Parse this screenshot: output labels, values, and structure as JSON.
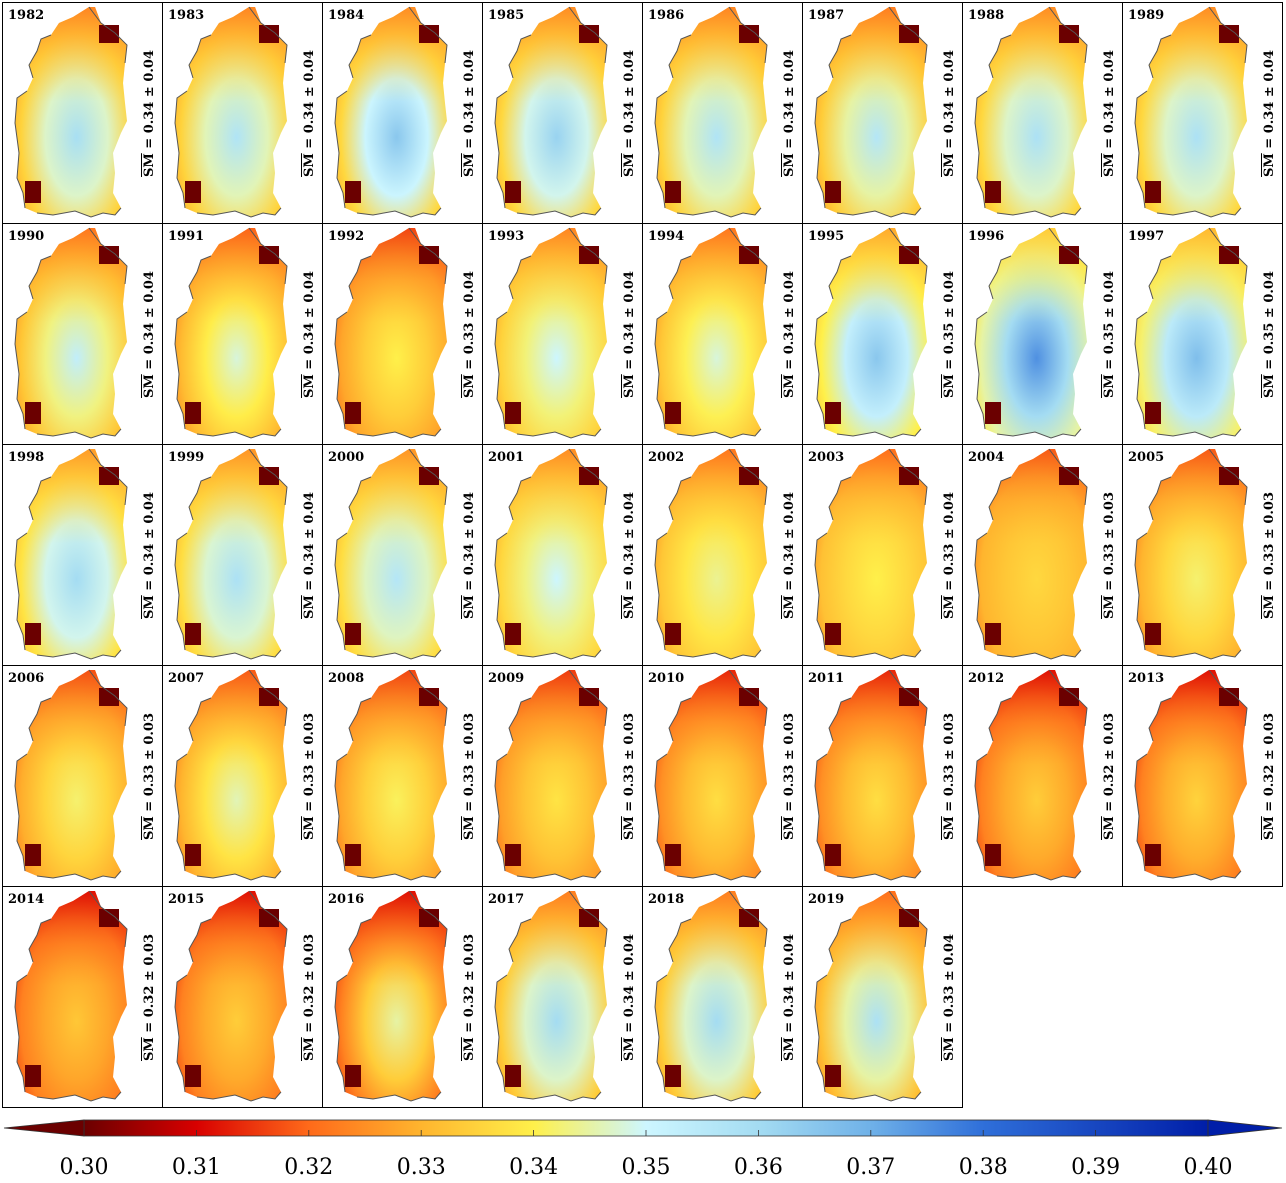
{
  "colors": {
    "stops": [
      "#6b0000",
      "#d80000",
      "#ff6a1a",
      "#ffb52e",
      "#fff04a",
      "#cdf6ff",
      "#a4dcf2",
      "#6fb1e8",
      "#2f6fd9",
      "#001ea8"
    ],
    "outline": "#555555"
  },
  "panels": [
    {
      "year": "1982",
      "label": "SM",
      "value": "= 0.34 ± 0.04",
      "mean": 0.34,
      "center": 0.359,
      "outer": 0.335
    },
    {
      "year": "1983",
      "label": "SM",
      "value": "= 0.34 ± 0.04",
      "mean": 0.34,
      "center": 0.357,
      "outer": 0.335
    },
    {
      "year": "1984",
      "label": "SM",
      "value": "= 0.34 ± 0.04",
      "mean": 0.34,
      "center": 0.365,
      "outer": 0.336
    },
    {
      "year": "1985",
      "label": "SM",
      "value": "= 0.34 ± 0.04",
      "mean": 0.34,
      "center": 0.362,
      "outer": 0.336
    },
    {
      "year": "1986",
      "label": "SM",
      "value": "= 0.34 ± 0.04",
      "mean": 0.34,
      "center": 0.357,
      "outer": 0.335
    },
    {
      "year": "1987",
      "label": "SM",
      "value": "= 0.34 ± 0.04",
      "mean": 0.34,
      "center": 0.356,
      "outer": 0.334
    },
    {
      "year": "1988",
      "label": "SM",
      "value": "= 0.34 ± 0.04",
      "mean": 0.34,
      "center": 0.358,
      "outer": 0.336
    },
    {
      "year": "1989",
      "label": "SM",
      "value": "= 0.34 ± 0.04",
      "mean": 0.34,
      "center": 0.358,
      "outer": 0.336
    },
    {
      "year": "1990",
      "label": "SM",
      "value": "= 0.34 ± 0.04",
      "mean": 0.34,
      "center": 0.353,
      "outer": 0.333
    },
    {
      "year": "1991",
      "label": "SM",
      "value": "= 0.34 ± 0.04",
      "mean": 0.34,
      "center": 0.348,
      "outer": 0.331
    },
    {
      "year": "1992",
      "label": "SM",
      "value": "= 0.33 ± 0.04",
      "mean": 0.33,
      "center": 0.34,
      "outer": 0.328
    },
    {
      "year": "1993",
      "label": "SM",
      "value": "= 0.34 ± 0.04",
      "mean": 0.34,
      "center": 0.35,
      "outer": 0.335
    },
    {
      "year": "1994",
      "label": "SM",
      "value": "= 0.34 ± 0.04",
      "mean": 0.34,
      "center": 0.348,
      "outer": 0.333
    },
    {
      "year": "1995",
      "label": "SM",
      "value": "= 0.35 ± 0.04",
      "mean": 0.35,
      "center": 0.365,
      "outer": 0.34
    },
    {
      "year": "1996",
      "label": "SM",
      "value": "= 0.35 ± 0.04",
      "mean": 0.35,
      "center": 0.375,
      "outer": 0.345
    },
    {
      "year": "1997",
      "label": "SM",
      "value": "= 0.35 ± 0.04",
      "mean": 0.35,
      "center": 0.367,
      "outer": 0.342
    },
    {
      "year": "1998",
      "label": "SM",
      "value": "= 0.34 ± 0.04",
      "mean": 0.34,
      "center": 0.36,
      "outer": 0.338
    },
    {
      "year": "1999",
      "label": "SM",
      "value": "= 0.34 ± 0.04",
      "mean": 0.34,
      "center": 0.358,
      "outer": 0.337
    },
    {
      "year": "2000",
      "label": "SM",
      "value": "= 0.34 ± 0.04",
      "mean": 0.34,
      "center": 0.356,
      "outer": 0.337
    },
    {
      "year": "2001",
      "label": "SM",
      "value": "= 0.34 ± 0.04",
      "mean": 0.34,
      "center": 0.35,
      "outer": 0.336
    },
    {
      "year": "2002",
      "label": "SM",
      "value": "= 0.34 ± 0.04",
      "mean": 0.34,
      "center": 0.344,
      "outer": 0.333
    },
    {
      "year": "2003",
      "label": "SM",
      "value": "= 0.33 ± 0.04",
      "mean": 0.33,
      "center": 0.34,
      "outer": 0.332
    },
    {
      "year": "2004",
      "label": "SM",
      "value": "= 0.33 ± 0.03",
      "mean": 0.33,
      "center": 0.336,
      "outer": 0.33
    },
    {
      "year": "2005",
      "label": "SM",
      "value": "= 0.33 ± 0.03",
      "mean": 0.33,
      "center": 0.342,
      "outer": 0.33
    },
    {
      "year": "2006",
      "label": "SM",
      "value": "= 0.33 ± 0.03",
      "mean": 0.33,
      "center": 0.342,
      "outer": 0.329
    },
    {
      "year": "2007",
      "label": "SM",
      "value": "= 0.33 ± 0.03",
      "mean": 0.33,
      "center": 0.346,
      "outer": 0.33
    },
    {
      "year": "2008",
      "label": "SM",
      "value": "= 0.33 ± 0.03",
      "mean": 0.33,
      "center": 0.341,
      "outer": 0.328
    },
    {
      "year": "2009",
      "label": "SM",
      "value": "= 0.33 ± 0.03",
      "mean": 0.33,
      "center": 0.338,
      "outer": 0.327
    },
    {
      "year": "2010",
      "label": "SM",
      "value": "= 0.33 ± 0.03",
      "mean": 0.33,
      "center": 0.337,
      "outer": 0.325
    },
    {
      "year": "2011",
      "label": "SM",
      "value": "= 0.33 ± 0.03",
      "mean": 0.33,
      "center": 0.337,
      "outer": 0.325
    },
    {
      "year": "2012",
      "label": "SM",
      "value": "= 0.32 ± 0.03",
      "mean": 0.32,
      "center": 0.334,
      "outer": 0.323
    },
    {
      "year": "2013",
      "label": "SM",
      "value": "= 0.32 ± 0.03",
      "mean": 0.32,
      "center": 0.335,
      "outer": 0.323
    },
    {
      "year": "2014",
      "label": "SM",
      "value": "= 0.32 ± 0.03",
      "mean": 0.32,
      "center": 0.333,
      "outer": 0.323
    },
    {
      "year": "2015",
      "label": "SM",
      "value": "= 0.32 ± 0.03",
      "mean": 0.32,
      "center": 0.334,
      "outer": 0.323
    },
    {
      "year": "2016",
      "label": "SM",
      "value": "= 0.32 ± 0.03",
      "mean": 0.32,
      "center": 0.345,
      "outer": 0.323
    },
    {
      "year": "2017",
      "label": "SM",
      "value": "= 0.34 ± 0.04",
      "mean": 0.34,
      "center": 0.36,
      "outer": 0.334
    },
    {
      "year": "2018",
      "label": "SM",
      "value": "= 0.34 ± 0.04",
      "mean": 0.34,
      "center": 0.36,
      "outer": 0.334
    },
    {
      "year": "2019",
      "label": "SM",
      "value": "= 0.33 ± 0.04",
      "mean": 0.33,
      "center": 0.358,
      "outer": 0.332
    }
  ],
  "colorbar": {
    "min": 0.3,
    "max": 0.4,
    "ticks": [
      "0.30",
      "0.31",
      "0.32",
      "0.33",
      "0.34",
      "0.35",
      "0.36",
      "0.37",
      "0.38",
      "0.39",
      "0.40"
    ]
  }
}
